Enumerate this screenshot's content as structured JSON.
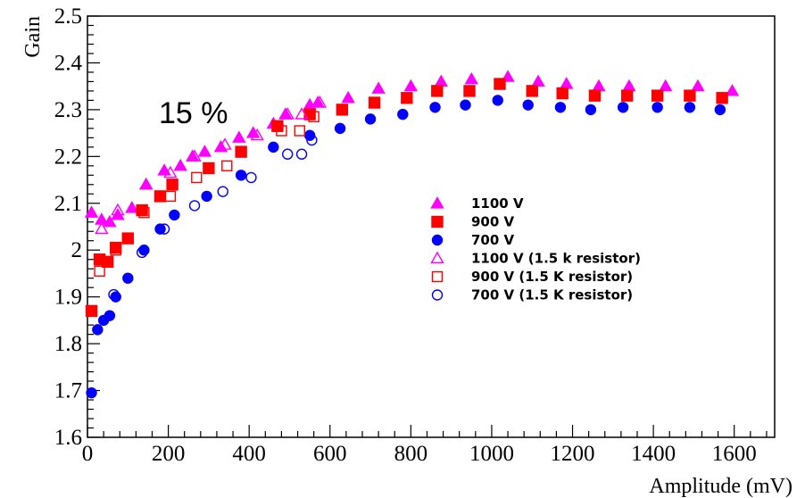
{
  "chart_data": {
    "type": "scatter",
    "title": "",
    "xlabel": "Amplitude (mV)",
    "ylabel": "Gain",
    "xlim": [
      0,
      1700
    ],
    "ylim": [
      1.6,
      2.5
    ],
    "x_ticks": [
      0,
      200,
      400,
      600,
      800,
      1000,
      1200,
      1400,
      1600
    ],
    "x_tick_labels": [
      "0",
      "200",
      "400",
      "600",
      "800",
      "1000",
      "1200",
      "1400",
      "1600"
    ],
    "y_ticks": [
      1.6,
      1.7,
      1.8,
      1.9,
      2.0,
      2.1,
      2.2,
      2.3,
      2.4,
      2.5
    ],
    "y_tick_labels": [
      "1.6",
      "1.7",
      "1.8",
      "1.9",
      "2",
      "2.1",
      "2.2",
      "2.3",
      "2.4",
      "2.5"
    ],
    "grid": false,
    "legend_position": "right-center",
    "annotations": [
      {
        "text": "15 %",
        "x": 190,
        "y": 2.3
      }
    ],
    "series": [
      {
        "name": "1100 V",
        "marker": "triangle",
        "filled": true,
        "color": "#ff00ff",
        "points": [
          [
            10,
            2.08
          ],
          [
            35,
            2.065
          ],
          [
            55,
            2.06
          ],
          [
            75,
            2.075
          ],
          [
            110,
            2.09
          ],
          [
            145,
            2.14
          ],
          [
            190,
            2.17
          ],
          [
            230,
            2.18
          ],
          [
            260,
            2.2
          ],
          [
            290,
            2.21
          ],
          [
            330,
            2.22
          ],
          [
            375,
            2.24
          ],
          [
            410,
            2.25
          ],
          [
            460,
            2.27
          ],
          [
            490,
            2.29
          ],
          [
            550,
            2.31
          ],
          [
            570,
            2.315
          ],
          [
            645,
            2.325
          ],
          [
            720,
            2.345
          ],
          [
            800,
            2.35
          ],
          [
            875,
            2.36
          ],
          [
            950,
            2.365
          ],
          [
            1040,
            2.37
          ],
          [
            1115,
            2.36
          ],
          [
            1185,
            2.355
          ],
          [
            1265,
            2.35
          ],
          [
            1340,
            2.35
          ],
          [
            1430,
            2.35
          ],
          [
            1510,
            2.35
          ],
          [
            1595,
            2.34
          ]
        ]
      },
      {
        "name": "900 V",
        "marker": "square",
        "filled": true,
        "color": "#ff0000",
        "points": [
          [
            10,
            1.87
          ],
          [
            30,
            1.98
          ],
          [
            50,
            1.975
          ],
          [
            70,
            2.005
          ],
          [
            100,
            2.025
          ],
          [
            135,
            2.085
          ],
          [
            180,
            2.115
          ],
          [
            210,
            2.14
          ],
          [
            300,
            2.175
          ],
          [
            380,
            2.21
          ],
          [
            470,
            2.265
          ],
          [
            550,
            2.29
          ],
          [
            630,
            2.3
          ],
          [
            710,
            2.315
          ],
          [
            790,
            2.325
          ],
          [
            865,
            2.34
          ],
          [
            945,
            2.34
          ],
          [
            1020,
            2.355
          ],
          [
            1100,
            2.34
          ],
          [
            1175,
            2.335
          ],
          [
            1255,
            2.33
          ],
          [
            1335,
            2.33
          ],
          [
            1410,
            2.33
          ],
          [
            1490,
            2.33
          ],
          [
            1570,
            2.325
          ]
        ]
      },
      {
        "name": "700 V",
        "marker": "circle",
        "filled": true,
        "color": "#0000ff",
        "points": [
          [
            10,
            1.695
          ],
          [
            25,
            1.83
          ],
          [
            40,
            1.85
          ],
          [
            55,
            1.86
          ],
          [
            70,
            1.9
          ],
          [
            100,
            1.94
          ],
          [
            140,
            2.0
          ],
          [
            180,
            2.045
          ],
          [
            215,
            2.075
          ],
          [
            295,
            2.115
          ],
          [
            380,
            2.16
          ],
          [
            460,
            2.22
          ],
          [
            550,
            2.245
          ],
          [
            625,
            2.26
          ],
          [
            700,
            2.28
          ],
          [
            780,
            2.29
          ],
          [
            860,
            2.305
          ],
          [
            935,
            2.31
          ],
          [
            1015,
            2.32
          ],
          [
            1090,
            2.31
          ],
          [
            1170,
            2.305
          ],
          [
            1245,
            2.3
          ],
          [
            1325,
            2.305
          ],
          [
            1410,
            2.305
          ],
          [
            1490,
            2.305
          ],
          [
            1565,
            2.3
          ]
        ]
      },
      {
        "name": "1100 V  (1.5 k resistor)",
        "marker": "triangle",
        "filled": false,
        "color": "#ff00ff",
        "points": [
          [
            35,
            2.045
          ],
          [
            75,
            2.085
          ],
          [
            145,
            2.14
          ],
          [
            205,
            2.165
          ],
          [
            265,
            2.2
          ],
          [
            340,
            2.225
          ],
          [
            420,
            2.245
          ],
          [
            495,
            2.29
          ],
          [
            530,
            2.29
          ],
          [
            575,
            2.315
          ]
        ]
      },
      {
        "name": "900 V (1.5 K resistor)",
        "marker": "square",
        "filled": false,
        "color": "#ff0000",
        "points": [
          [
            30,
            1.955
          ],
          [
            70,
            2.0
          ],
          [
            140,
            2.08
          ],
          [
            205,
            2.115
          ],
          [
            270,
            2.155
          ],
          [
            345,
            2.18
          ],
          [
            480,
            2.255
          ],
          [
            525,
            2.255
          ],
          [
            560,
            2.285
          ]
        ]
      },
      {
        "name": "700 V (1.5 K resistor)",
        "marker": "circle",
        "filled": false,
        "color": "#0000ff",
        "points": [
          [
            65,
            1.905
          ],
          [
            135,
            1.995
          ],
          [
            190,
            2.045
          ],
          [
            265,
            2.095
          ],
          [
            335,
            2.125
          ],
          [
            405,
            2.155
          ],
          [
            495,
            2.205
          ],
          [
            530,
            2.205
          ],
          [
            555,
            2.235
          ]
        ]
      }
    ]
  }
}
